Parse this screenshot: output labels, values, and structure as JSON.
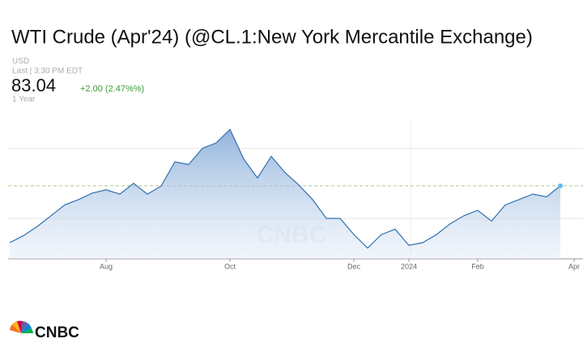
{
  "chart_data": {
    "type": "line",
    "title": "WTI Crude (Apr'24) (@CL.1:New York Mercantile Exchange)",
    "currency": "USD",
    "last_time": "Last | 3:30 PM EDT",
    "price": 83.04,
    "change": "+2.00 (2.47%%)",
    "range": "1 Year",
    "logo": "CNBC",
    "categories": [
      null,
      null,
      null,
      null,
      null,
      null,
      null,
      "Aug",
      null,
      null,
      null,
      null,
      null,
      null,
      null,
      null,
      "Oct",
      null,
      null,
      null,
      null,
      null,
      null,
      null,
      null,
      "Dec",
      null,
      null,
      null,
      "2024",
      null,
      null,
      null,
      null,
      "Feb",
      null,
      null,
      null,
      null,
      null,
      null,
      "Apr"
    ],
    "series": [
      {
        "name": "WTI Crude",
        "color": "#2f6fb0",
        "values": [
          72.5,
          73.8,
          75.5,
          77.5,
          79.5,
          80.5,
          81.7,
          82.3,
          81.5,
          83.5,
          81.5,
          83,
          87.5,
          87,
          90,
          91,
          93.5,
          88,
          84.5,
          88.5,
          85.5,
          83.2,
          80.5,
          77,
          77,
          74,
          71.5,
          74,
          75,
          72,
          72.5,
          74,
          76,
          77.5,
          78.5,
          76.5,
          79.5,
          80.5,
          81.5,
          81,
          83.04,
          null
        ]
      }
    ],
    "ylim": [
      69.5,
      95
    ],
    "yticks": [
      77,
      90
    ],
    "grid": true
  }
}
